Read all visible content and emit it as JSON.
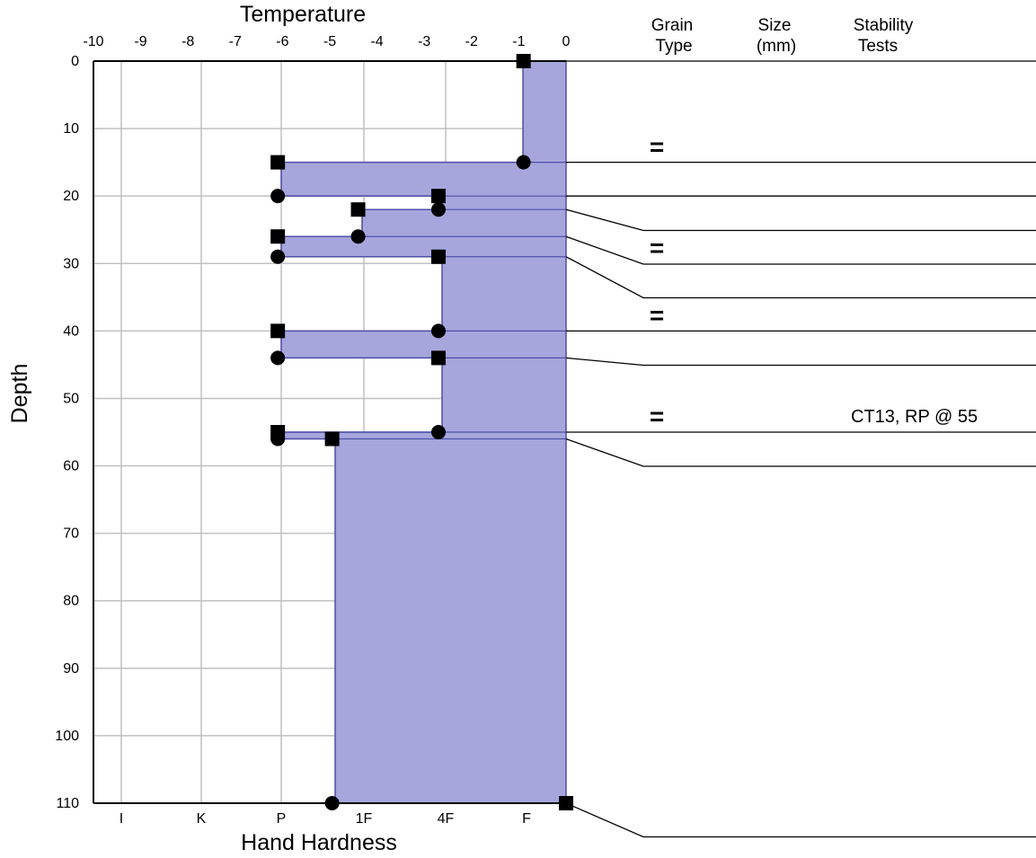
{
  "chart_data": {
    "type": "snow-profile",
    "top_axis": {
      "title": "Temperature",
      "range": [
        -10,
        0
      ],
      "ticks": [
        -10,
        -9,
        -8,
        -7,
        -6,
        -5,
        -4,
        -3,
        -2,
        -1,
        0
      ]
    },
    "left_axis": {
      "title": "Depth",
      "range": [
        0,
        110
      ],
      "ticks": [
        0,
        10,
        20,
        30,
        40,
        50,
        60,
        70,
        80,
        90,
        100,
        110
      ]
    },
    "bottom_axis": {
      "title": "Hand Hardness",
      "ticks": [
        "I",
        "K",
        "P",
        "1F",
        "4F",
        "F"
      ]
    },
    "columns": [
      {
        "id": "grain",
        "line1": "Grain",
        "line2": "Type"
      },
      {
        "id": "size",
        "line1": "Size",
        "line2": "(mm)"
      },
      {
        "id": "stab",
        "line1": "Stability",
        "line2": "Tests"
      }
    ],
    "hardness_profile": [
      {
        "top": 0,
        "bottom": 15,
        "hardness": "F-",
        "temp_left": -1
      },
      {
        "top": 15,
        "bottom": 20,
        "hardness": "P",
        "temp_left": -6.3
      },
      {
        "top": 20,
        "bottom": 22,
        "hardness": "4F-",
        "temp_left": -2.65
      },
      {
        "top": 22,
        "bottom": 26,
        "hardness": "1F-",
        "temp_left": -4.3
      },
      {
        "top": 26,
        "bottom": 29,
        "hardness": "P",
        "temp_left": -6.3
      },
      {
        "top": 29,
        "bottom": 40,
        "hardness": "4F-",
        "temp_left": -2.65
      },
      {
        "top": 40,
        "bottom": 44,
        "hardness": "P",
        "temp_left": -6.3
      },
      {
        "top": 44,
        "bottom": 55,
        "hardness": "4F-",
        "temp_left": -2.65
      },
      {
        "top": 55,
        "bottom": 56,
        "hardness": "P",
        "temp_left": -6.3
      },
      {
        "top": 56,
        "bottom": 110,
        "hardness": "P+",
        "temp_left": -5.05
      }
    ],
    "square_markers": [
      {
        "depth": 0,
        "temp": -0.9
      },
      {
        "depth": 15,
        "temp": -6.1
      },
      {
        "depth": 20,
        "temp": -2.7
      },
      {
        "depth": 22,
        "temp": -4.4
      },
      {
        "depth": 26,
        "temp": -6.1
      },
      {
        "depth": 29,
        "temp": -2.7
      },
      {
        "depth": 40,
        "temp": -6.1
      },
      {
        "depth": 44,
        "temp": -2.7
      },
      {
        "depth": 55,
        "temp": -6.1
      },
      {
        "depth": 56,
        "temp": -4.95
      },
      {
        "depth": 110,
        "temp": 0
      }
    ],
    "circle_markers": [
      {
        "depth": 15,
        "temp": -0.9
      },
      {
        "depth": 20,
        "temp": -6.1
      },
      {
        "depth": 22,
        "temp": -2.7
      },
      {
        "depth": 26,
        "temp": -4.4
      },
      {
        "depth": 29,
        "temp": -6.1
      },
      {
        "depth": 40,
        "temp": -2.7
      },
      {
        "depth": 44,
        "temp": -6.1
      },
      {
        "depth": 55,
        "temp": -2.7
      },
      {
        "depth": 56,
        "temp": -6.1
      },
      {
        "depth": 110,
        "temp": -4.95
      }
    ],
    "layer_boundaries": [
      {
        "depth": 0,
        "row": 0
      },
      {
        "depth": 15,
        "row": 3
      },
      {
        "depth": 20,
        "row": 4
      },
      {
        "depth": 22,
        "row": 5
      },
      {
        "depth": 26,
        "row": 6
      },
      {
        "depth": 29,
        "row": 7
      },
      {
        "depth": 40,
        "row": 8
      },
      {
        "depth": 44,
        "row": 9
      },
      {
        "depth": 55,
        "row": 11
      },
      {
        "depth": 56,
        "row": 12
      },
      {
        "depth": 110,
        "row": 23
      }
    ],
    "grain_type_symbols": [
      {
        "row": 3,
        "symbol": "="
      },
      {
        "row": 6,
        "symbol": "="
      },
      {
        "row": 8,
        "symbol": "="
      },
      {
        "row": 11,
        "symbol": "="
      }
    ],
    "stability_tests": [
      {
        "row": 11,
        "text": "CT13, RP @ 55"
      }
    ],
    "fill_color": "#a6a6dd",
    "edge_color": "#4f4fa8"
  }
}
